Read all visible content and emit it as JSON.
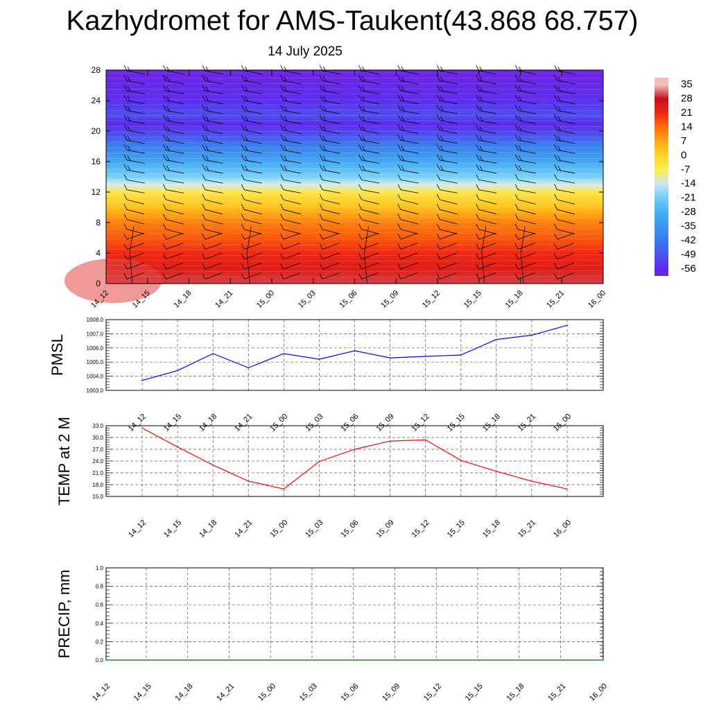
{
  "title": "Kazhydromet for AMS-Taukent(43.868 68.757)",
  "subtitle": "14 July 2025",
  "chart_data": [
    {
      "type": "heatmap",
      "panel": "upper",
      "y_ticks": [
        "0",
        "4",
        "8",
        "12",
        "16",
        "20",
        "24",
        "28"
      ],
      "ylim": [
        0,
        28
      ],
      "x_ticks": [
        "14_12",
        "14_15",
        "14_18",
        "14_21",
        "15_00",
        "15_03",
        "15_06",
        "15_09",
        "15_12",
        "15_15",
        "15_18",
        "15_21",
        "16_00"
      ],
      "colorbar_labels": [
        "35",
        "28",
        "21",
        "14",
        "7",
        "0",
        "-7",
        "-14",
        "-21",
        "-28",
        "-35",
        "-42",
        "-49",
        "-56"
      ],
      "level_temperatures": [
        {
          "level": 0,
          "temp": 30
        },
        {
          "level": 2,
          "temp": 24
        },
        {
          "level": 4,
          "temp": 21
        },
        {
          "level": 6,
          "temp": 16
        },
        {
          "level": 8,
          "temp": 12
        },
        {
          "level": 10,
          "temp": 3
        },
        {
          "level": 12,
          "temp": -5
        },
        {
          "level": 13,
          "temp": -13
        },
        {
          "level": 14,
          "temp": -20
        },
        {
          "level": 16,
          "temp": -30
        },
        {
          "level": 18,
          "temp": -40
        },
        {
          "level": 20,
          "temp": -52
        },
        {
          "level": 21,
          "temp": -56
        },
        {
          "level": 22,
          "temp": -50
        },
        {
          "level": 24,
          "temp": -55
        },
        {
          "level": 28,
          "temp": -60
        }
      ],
      "wind_barbs": true
    },
    {
      "type": "line",
      "ylabel": "PMSL",
      "x": [
        "14_12",
        "14_15",
        "14_18",
        "14_21",
        "15_00",
        "15_03",
        "15_06",
        "15_09",
        "15_12",
        "15_15",
        "15_18",
        "15_21",
        "16_00"
      ],
      "values": [
        1003.7,
        1004.4,
        1005.6,
        1004.6,
        1005.6,
        1005.2,
        1005.8,
        1005.3,
        1005.4,
        1005.5,
        1006.6,
        1006.9,
        1007.6
      ],
      "y_ticks": [
        "1003.0",
        "1004.0",
        "1005.0",
        "1006.0",
        "1007.0",
        "1008.0"
      ],
      "ylim": [
        1003,
        1008
      ],
      "color": "#0000ff",
      "grid": true
    },
    {
      "type": "line",
      "ylabel": "TEMP at 2 M",
      "x": [
        "14_12",
        "14_15",
        "14_18",
        "14_21",
        "15_00",
        "15_03",
        "15_06",
        "15_09",
        "15_12",
        "15_15",
        "15_18",
        "15_21",
        "16_00"
      ],
      "values": [
        32.4,
        27.6,
        23.0,
        18.9,
        16.9,
        23.9,
        27.0,
        29.1,
        29.4,
        24.2,
        21.4,
        18.9,
        16.9
      ],
      "y_ticks": [
        "15.0",
        "18.0",
        "21.0",
        "24.0",
        "27.0",
        "30.0",
        "33.0"
      ],
      "ylim": [
        15,
        33
      ],
      "color": "#ff0000",
      "grid": true
    },
    {
      "type": "line",
      "ylabel": "PRECIP, mm",
      "x": [
        "14_12",
        "14_15",
        "14_18",
        "14_21",
        "15_00",
        "15_03",
        "15_06",
        "15_09",
        "15_12",
        "15_15",
        "15_18",
        "15_21",
        "16_00"
      ],
      "values": [
        0,
        0,
        0,
        0,
        0,
        0,
        0,
        0,
        0,
        0,
        0,
        0,
        0
      ],
      "y_ticks": [
        "0.0",
        "0.2",
        "0.4",
        "0.6",
        "0.8",
        "1.0"
      ],
      "ylim": [
        0,
        1
      ],
      "color": "#006400",
      "grid": true
    }
  ]
}
